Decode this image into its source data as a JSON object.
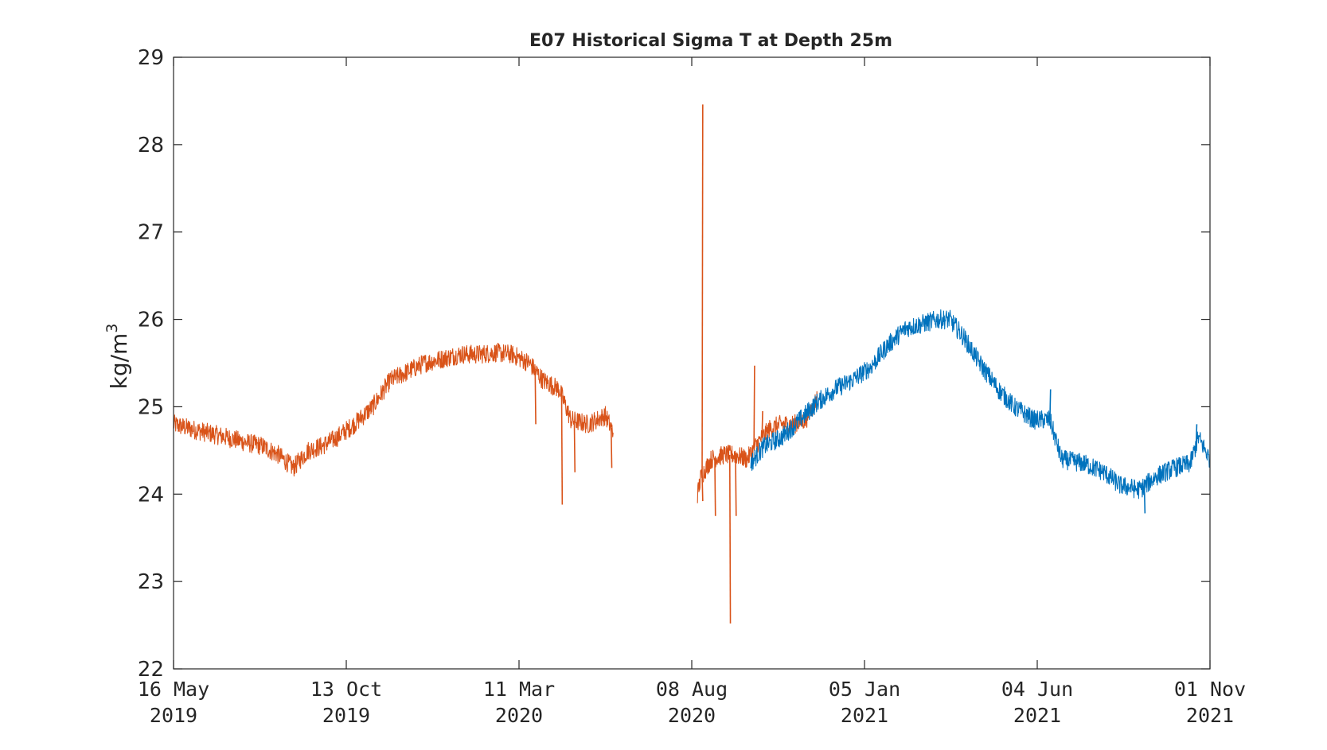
{
  "chart_data": {
    "type": "line",
    "title": "E07 Historical Sigma T at Depth 25m",
    "xlabel": "",
    "ylabel": "kg/m",
    "ylabel_superscript": "3",
    "ylim": [
      22,
      29
    ],
    "xlim": [
      "2019-05-16",
      "2021-11-01"
    ],
    "grid": false,
    "legend": "none",
    "y_ticks": [
      "22",
      "23",
      "24",
      "25",
      "26",
      "27",
      "28",
      "29"
    ],
    "x_ticks": [
      {
        "date": "2019-05-16",
        "line1": "16 May",
        "line2": "2019"
      },
      {
        "date": "2019-10-13",
        "line1": "13 Oct",
        "line2": "2019"
      },
      {
        "date": "2020-03-11",
        "line1": "11 Mar",
        "line2": "2020"
      },
      {
        "date": "2020-08-08",
        "line1": "08 Aug",
        "line2": "2020"
      },
      {
        "date": "2021-01-05",
        "line1": "05 Jan",
        "line2": "2021"
      },
      {
        "date": "2021-06-04",
        "line1": "04 Jun",
        "line2": "2021"
      },
      {
        "date": "2021-11-01",
        "line1": "01 Nov",
        "line2": "2021"
      }
    ],
    "series": [
      {
        "color": "#D95319",
        "points": [
          [
            "2019-05-16",
            24.8
          ],
          [
            "2019-05-30",
            24.75
          ],
          [
            "2019-06-15",
            24.7
          ],
          [
            "2019-07-01",
            24.65
          ],
          [
            "2019-07-15",
            24.6
          ],
          [
            "2019-08-01",
            24.55
          ],
          [
            "2019-08-15",
            24.45
          ],
          [
            "2019-08-28",
            24.3
          ],
          [
            "2019-09-10",
            24.5
          ],
          [
            "2019-09-22",
            24.55
          ],
          [
            "2019-10-05",
            24.65
          ],
          [
            "2019-10-20",
            24.8
          ],
          [
            "2019-11-05",
            25.0
          ],
          [
            "2019-11-20",
            25.3
          ],
          [
            "2019-12-05",
            25.4
          ],
          [
            "2019-12-20",
            25.5
          ],
          [
            "2020-01-05",
            25.55
          ],
          [
            "2020-01-20",
            25.6
          ],
          [
            "2020-02-05",
            25.6
          ],
          [
            "2020-02-20",
            25.62
          ],
          [
            "2020-03-05",
            25.6
          ],
          [
            "2020-03-20",
            25.5
          ],
          [
            "2020-04-01",
            25.3
          ],
          [
            "2020-04-15",
            25.2
          ],
          [
            "2020-04-25",
            24.85
          ],
          [
            "2020-05-10",
            24.8
          ],
          [
            "2020-05-25",
            24.9
          ],
          [
            "2020-06-01",
            24.7
          ]
        ],
        "spikes": [
          [
            "2020-03-25",
            24.8
          ],
          [
            "2020-04-17",
            23.88
          ],
          [
            "2020-04-28",
            24.25
          ],
          [
            "2020-05-30",
            24.3
          ]
        ]
      },
      {
        "color": "#D95319",
        "points": [
          [
            "2020-08-13",
            24.0
          ],
          [
            "2020-08-16",
            24.2
          ],
          [
            "2020-08-25",
            24.4
          ],
          [
            "2020-09-05",
            24.45
          ],
          [
            "2020-09-15",
            24.45
          ],
          [
            "2020-09-25",
            24.4
          ],
          [
            "2020-10-05",
            24.6
          ],
          [
            "2020-10-15",
            24.75
          ],
          [
            "2020-10-25",
            24.8
          ],
          [
            "2020-11-05",
            24.8
          ],
          [
            "2020-11-15",
            24.85
          ],
          [
            "2020-11-25",
            25.1
          ]
        ],
        "spikes": [
          [
            "2020-08-17",
            28.46
          ],
          [
            "2020-08-17",
            23.92
          ],
          [
            "2020-08-28",
            23.75
          ],
          [
            "2020-09-10",
            22.52
          ],
          [
            "2020-09-15",
            23.75
          ],
          [
            "2020-10-01",
            25.47
          ],
          [
            "2020-10-08",
            24.95
          ]
        ]
      },
      {
        "color": "#0072BD",
        "points": [
          [
            "2020-09-28",
            24.35
          ],
          [
            "2020-10-10",
            24.55
          ],
          [
            "2020-10-25",
            24.65
          ],
          [
            "2020-11-10",
            24.85
          ],
          [
            "2020-11-25",
            25.05
          ],
          [
            "2020-12-10",
            25.2
          ],
          [
            "2020-12-25",
            25.3
          ],
          [
            "2021-01-10",
            25.45
          ],
          [
            "2021-01-25",
            25.7
          ],
          [
            "2021-02-10",
            25.9
          ],
          [
            "2021-02-25",
            25.95
          ],
          [
            "2021-03-10",
            26.0
          ],
          [
            "2021-03-20",
            26.0
          ],
          [
            "2021-04-01",
            25.8
          ],
          [
            "2021-04-15",
            25.5
          ],
          [
            "2021-05-01",
            25.2
          ],
          [
            "2021-05-15",
            25.0
          ],
          [
            "2021-06-01",
            24.85
          ],
          [
            "2021-06-15",
            24.85
          ],
          [
            "2021-06-25",
            24.4
          ],
          [
            "2021-07-15",
            24.35
          ],
          [
            "2021-08-01",
            24.25
          ],
          [
            "2021-08-15",
            24.1
          ],
          [
            "2021-09-01",
            24.05
          ],
          [
            "2021-09-15",
            24.2
          ],
          [
            "2021-10-01",
            24.3
          ],
          [
            "2021-10-15",
            24.35
          ],
          [
            "2021-10-22",
            24.65
          ],
          [
            "2021-11-01",
            24.4
          ]
        ],
        "spikes": [
          [
            "2021-06-15",
            25.2
          ],
          [
            "2021-09-05",
            23.78
          ],
          [
            "2021-10-20",
            24.8
          ]
        ]
      }
    ]
  }
}
